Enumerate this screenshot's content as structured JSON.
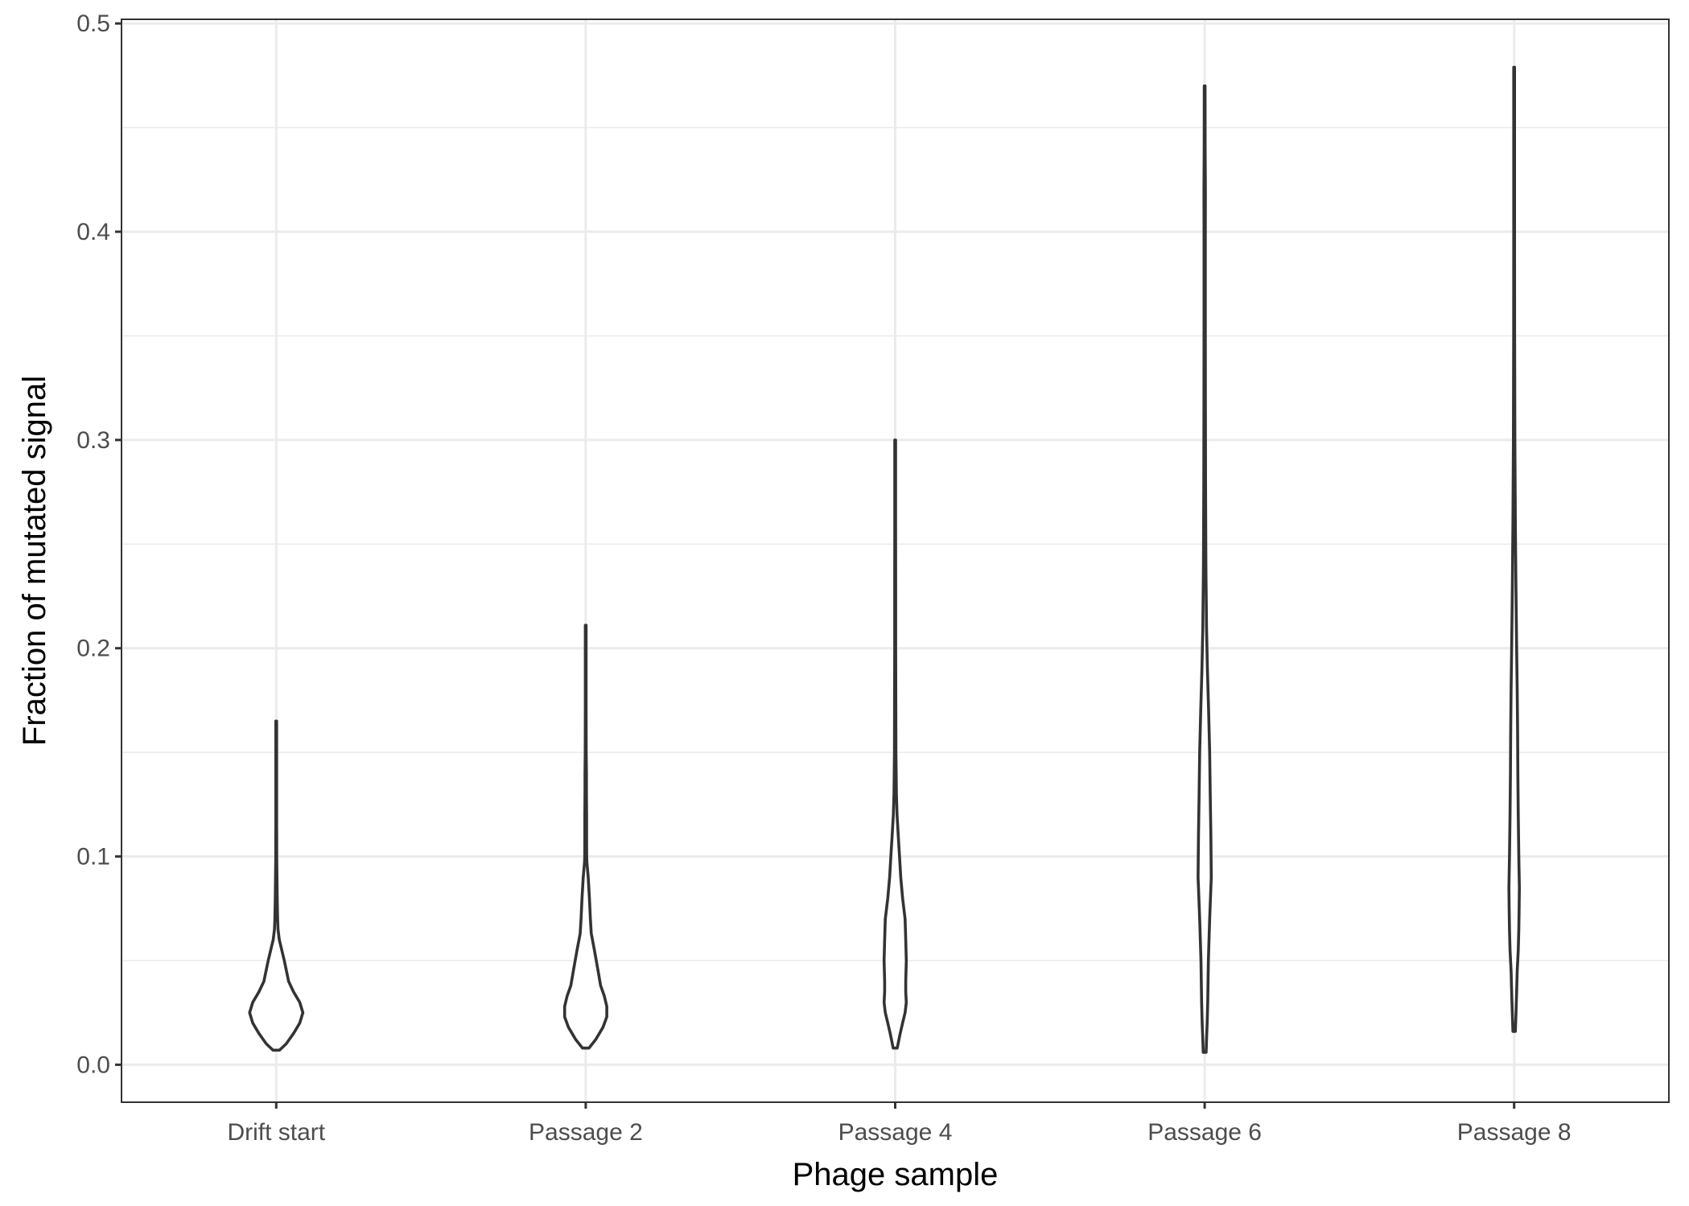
{
  "chart_data": {
    "type": "violin",
    "xlabel": "Phage sample",
    "ylabel": "Fraction of mutated signal",
    "categories": [
      "Drift start",
      "Passage 2",
      "Passage 4",
      "Passage 6",
      "Passage 8"
    ],
    "ylim": [
      -0.018,
      0.502
    ],
    "yticks": [
      0.0,
      0.1,
      0.2,
      0.3,
      0.4,
      0.5
    ],
    "ytick_labels": [
      "0.0",
      "0.1",
      "0.2",
      "0.3",
      "0.4",
      "0.5"
    ],
    "grid": true,
    "series": [
      {
        "category": "Drift start",
        "min": 0.007,
        "max": 0.165,
        "profile": [
          [
            0.007,
            0.026
          ],
          [
            0.01,
            0.08
          ],
          [
            0.015,
            0.14
          ],
          [
            0.02,
            0.19
          ],
          [
            0.025,
            0.215
          ],
          [
            0.03,
            0.19
          ],
          [
            0.035,
            0.14
          ],
          [
            0.04,
            0.1
          ],
          [
            0.05,
            0.065
          ],
          [
            0.055,
            0.045
          ],
          [
            0.06,
            0.025
          ],
          [
            0.065,
            0.014
          ],
          [
            0.07,
            0.011
          ],
          [
            0.08,
            0.008
          ],
          [
            0.09,
            0.006
          ],
          [
            0.1,
            0.004
          ],
          [
            0.11,
            0.004
          ],
          [
            0.115,
            0.003
          ],
          [
            0.13,
            0.003
          ],
          [
            0.15,
            0.003
          ],
          [
            0.165,
            0.003
          ]
        ]
      },
      {
        "category": "Passage 2",
        "min": 0.008,
        "max": 0.211,
        "profile": [
          [
            0.008,
            0.026
          ],
          [
            0.012,
            0.08
          ],
          [
            0.018,
            0.14
          ],
          [
            0.023,
            0.17
          ],
          [
            0.028,
            0.17
          ],
          [
            0.033,
            0.15
          ],
          [
            0.038,
            0.12
          ],
          [
            0.045,
            0.1
          ],
          [
            0.055,
            0.07
          ],
          [
            0.063,
            0.045
          ],
          [
            0.07,
            0.038
          ],
          [
            0.08,
            0.03
          ],
          [
            0.09,
            0.02
          ],
          [
            0.097,
            0.01
          ],
          [
            0.1,
            0.008
          ],
          [
            0.11,
            0.007
          ],
          [
            0.12,
            0.007
          ],
          [
            0.13,
            0.006
          ],
          [
            0.14,
            0.006
          ],
          [
            0.15,
            0.004
          ],
          [
            0.17,
            0.003
          ],
          [
            0.19,
            0.003
          ],
          [
            0.211,
            0.003
          ]
        ]
      },
      {
        "category": "Passage 4",
        "min": 0.008,
        "max": 0.3,
        "profile": [
          [
            0.008,
            0.016
          ],
          [
            0.015,
            0.04
          ],
          [
            0.02,
            0.06
          ],
          [
            0.025,
            0.08
          ],
          [
            0.03,
            0.09
          ],
          [
            0.035,
            0.085
          ],
          [
            0.04,
            0.085
          ],
          [
            0.05,
            0.09
          ],
          [
            0.06,
            0.085
          ],
          [
            0.07,
            0.08
          ],
          [
            0.08,
            0.06
          ],
          [
            0.09,
            0.045
          ],
          [
            0.1,
            0.035
          ],
          [
            0.11,
            0.025
          ],
          [
            0.12,
            0.015
          ],
          [
            0.13,
            0.01
          ],
          [
            0.14,
            0.008
          ],
          [
            0.15,
            0.006
          ],
          [
            0.17,
            0.005
          ],
          [
            0.2,
            0.004
          ],
          [
            0.23,
            0.004
          ],
          [
            0.26,
            0.003
          ],
          [
            0.3,
            0.003
          ]
        ]
      },
      {
        "category": "Passage 6",
        "min": 0.006,
        "max": 0.47,
        "profile": [
          [
            0.006,
            0.012
          ],
          [
            0.012,
            0.015
          ],
          [
            0.02,
            0.02
          ],
          [
            0.03,
            0.025
          ],
          [
            0.05,
            0.03
          ],
          [
            0.07,
            0.04
          ],
          [
            0.09,
            0.053
          ],
          [
            0.11,
            0.05
          ],
          [
            0.13,
            0.045
          ],
          [
            0.15,
            0.04
          ],
          [
            0.17,
            0.032
          ],
          [
            0.19,
            0.022
          ],
          [
            0.21,
            0.015
          ],
          [
            0.24,
            0.01
          ],
          [
            0.28,
            0.007
          ],
          [
            0.32,
            0.006
          ],
          [
            0.36,
            0.005
          ],
          [
            0.4,
            0.005
          ],
          [
            0.42,
            0.006
          ],
          [
            0.44,
            0.004
          ],
          [
            0.47,
            0.003
          ]
        ]
      },
      {
        "category": "Passage 8",
        "min": 0.016,
        "max": 0.479,
        "profile": [
          [
            0.016,
            0.01
          ],
          [
            0.025,
            0.015
          ],
          [
            0.035,
            0.02
          ],
          [
            0.045,
            0.025
          ],
          [
            0.055,
            0.033
          ],
          [
            0.065,
            0.038
          ],
          [
            0.075,
            0.04
          ],
          [
            0.085,
            0.042
          ],
          [
            0.1,
            0.038
          ],
          [
            0.12,
            0.033
          ],
          [
            0.14,
            0.03
          ],
          [
            0.16,
            0.028
          ],
          [
            0.18,
            0.025
          ],
          [
            0.2,
            0.02
          ],
          [
            0.23,
            0.014
          ],
          [
            0.26,
            0.01
          ],
          [
            0.3,
            0.006
          ],
          [
            0.35,
            0.004
          ],
          [
            0.4,
            0.003
          ],
          [
            0.45,
            0.003
          ],
          [
            0.479,
            0.003
          ]
        ]
      }
    ]
  }
}
